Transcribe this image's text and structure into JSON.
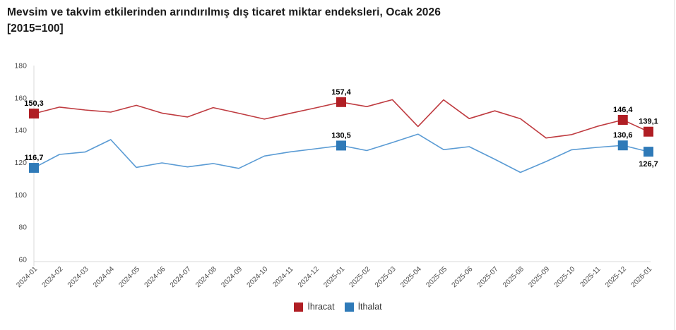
{
  "title": "Mevsim ve takvim etkilerinden arındırılmış dış ticaret miktar endeksleri, Ocak 2026",
  "subtitle": "[2015=100]",
  "colors": {
    "export_marker": "#b01e24",
    "export_line": "#bf3b40",
    "import_marker": "#2f7ab8",
    "import_line": "#5a9bd4",
    "axis_line": "#d9d9d9",
    "tick_text": "#4a4a4a",
    "data_label_text": "#000000"
  },
  "chart_data": {
    "type": "line",
    "title": "Mevsim ve takvim etkilerinden arındırılmış dış ticaret miktar endeksleri, Ocak 2026 [2015=100]",
    "x": [
      "2024-01",
      "2024-02",
      "2024-03",
      "2024-04",
      "2024-05",
      "2024-06",
      "2024-07",
      "2024-08",
      "2024-09",
      "2024-10",
      "2024-11",
      "2024-12",
      "2025-01",
      "2025-02",
      "2025-03",
      "2025-04",
      "2025-05",
      "2025-06",
      "2025-07",
      "2025-08",
      "2025-09",
      "2025-10",
      "2025-11",
      "2025-12",
      "2026-01"
    ],
    "ylim": [
      60,
      180
    ],
    "yticks": [
      180,
      160,
      140,
      120,
      100,
      80,
      60
    ],
    "grid": false,
    "legend_position": "bottom",
    "series": [
      {
        "name": "İhracat",
        "values": [
          150.3,
          154.3,
          152.5,
          151.2,
          155.4,
          150.6,
          148.2,
          154.0,
          150.5,
          146.9,
          150.4,
          153.8,
          157.4,
          154.6,
          158.9,
          142.3,
          158.8,
          147.2,
          152.0,
          147.1,
          135.2,
          137.3,
          142.4,
          146.4,
          139.1
        ],
        "labeled_points": [
          {
            "index": 0,
            "text": "150,3",
            "pos": "above"
          },
          {
            "index": 12,
            "text": "157,4",
            "pos": "above"
          },
          {
            "index": 23,
            "text": "146,4",
            "pos": "above"
          },
          {
            "index": 24,
            "text": "139,1",
            "pos": "above"
          }
        ]
      },
      {
        "name": "İthalat",
        "values": [
          116.7,
          125.0,
          126.5,
          134.2,
          117.0,
          119.8,
          117.3,
          119.4,
          116.4,
          124.0,
          126.6,
          128.5,
          130.5,
          127.4,
          132.4,
          137.6,
          128.0,
          129.8,
          122.0,
          113.9,
          120.6,
          127.9,
          129.4,
          130.6,
          126.7
        ],
        "labeled_points": [
          {
            "index": 0,
            "text": "116,7",
            "pos": "above"
          },
          {
            "index": 12,
            "text": "130,5",
            "pos": "above"
          },
          {
            "index": 23,
            "text": "130,6",
            "pos": "above"
          },
          {
            "index": 24,
            "text": "126,7",
            "pos": "below"
          }
        ]
      }
    ]
  },
  "legend": {
    "items": [
      {
        "label": "İhracat"
      },
      {
        "label": "İthalat"
      }
    ]
  }
}
